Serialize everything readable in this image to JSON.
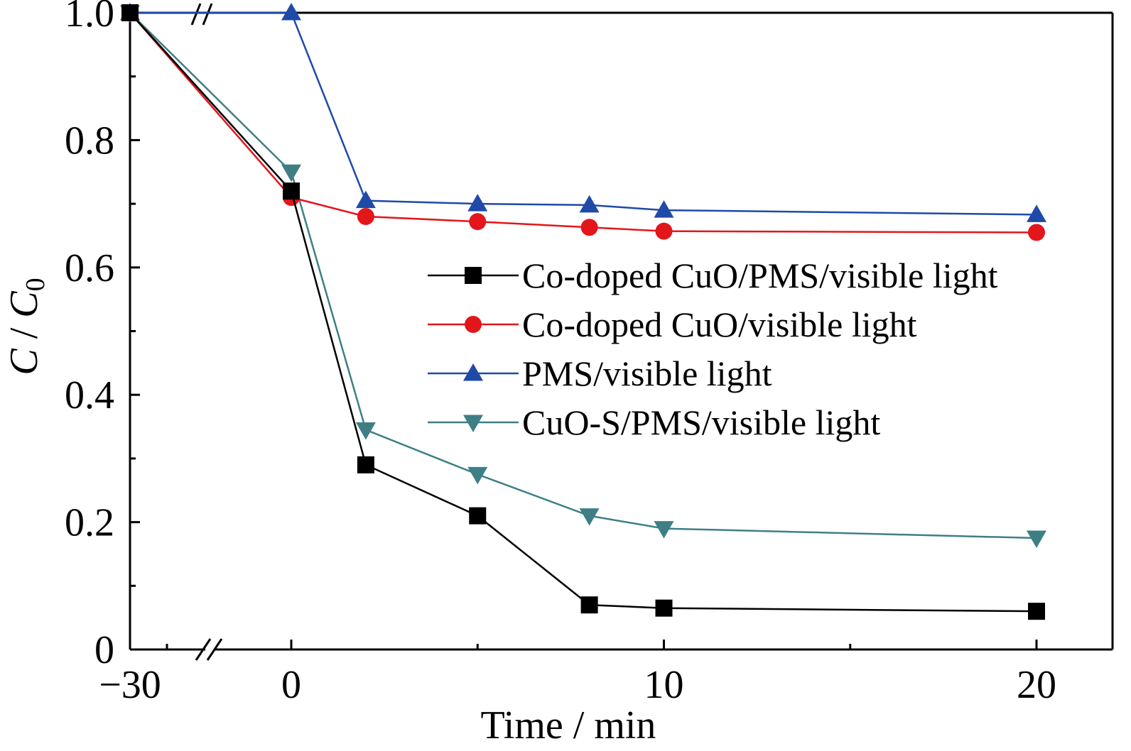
{
  "chart_data": {
    "type": "line",
    "xlabel": "Time / min",
    "ylabel_main": "C",
    "ylabel_sep": " / ",
    "ylabel_sub_base": "C",
    "ylabel_sub_index": "0",
    "x_ticks": [
      {
        "value": -30,
        "label": "−30"
      },
      {
        "value": 0,
        "label": "0"
      },
      {
        "value": 10,
        "label": "10"
      },
      {
        "value": 20,
        "label": "20"
      }
    ],
    "y_ticks": [
      {
        "value": 0,
        "label": "0"
      },
      {
        "value": 0.2,
        "label": "0.2"
      },
      {
        "value": 0.4,
        "label": "0.4"
      },
      {
        "value": 0.6,
        "label": "0.6"
      },
      {
        "value": 0.8,
        "label": "0.8"
      },
      {
        "value": 1.0,
        "label": "1.0"
      }
    ],
    "xlim_broken": [
      [
        -30.5,
        -26.5
      ],
      [
        -1,
        21.5
      ]
    ],
    "ylim": [
      0,
      1.0
    ],
    "axis_break": "x, between -30 and 0",
    "legend_position": "right-center",
    "series": [
      {
        "name": "Co-doped CuO/PMS/visible light",
        "marker": "square",
        "color": "#000000",
        "x": [
          -30,
          0,
          2,
          5,
          8,
          10,
          20
        ],
        "y": [
          1.0,
          0.72,
          0.29,
          0.21,
          0.07,
          0.065,
          0.06
        ]
      },
      {
        "name": "Co-doped CuO/visible light",
        "marker": "circle",
        "color": "#e3161b",
        "x": [
          -30,
          0,
          2,
          5,
          8,
          10,
          20
        ],
        "y": [
          1.0,
          0.71,
          0.68,
          0.672,
          0.663,
          0.657,
          0.655
        ]
      },
      {
        "name": "PMS/visible light",
        "marker": "triangle-up",
        "color": "#1f4aa8",
        "x": [
          -30,
          0,
          2,
          5,
          8,
          10,
          20
        ],
        "y": [
          1.0,
          1.0,
          0.705,
          0.7,
          0.698,
          0.69,
          0.683
        ]
      },
      {
        "name": "CuO-S/PMS/visible light",
        "marker": "triangle-down",
        "color": "#3e7f86",
        "x": [
          -30,
          0,
          2,
          5,
          8,
          10,
          20
        ],
        "y": [
          1.0,
          0.75,
          0.345,
          0.275,
          0.21,
          0.19,
          0.175
        ]
      }
    ]
  }
}
